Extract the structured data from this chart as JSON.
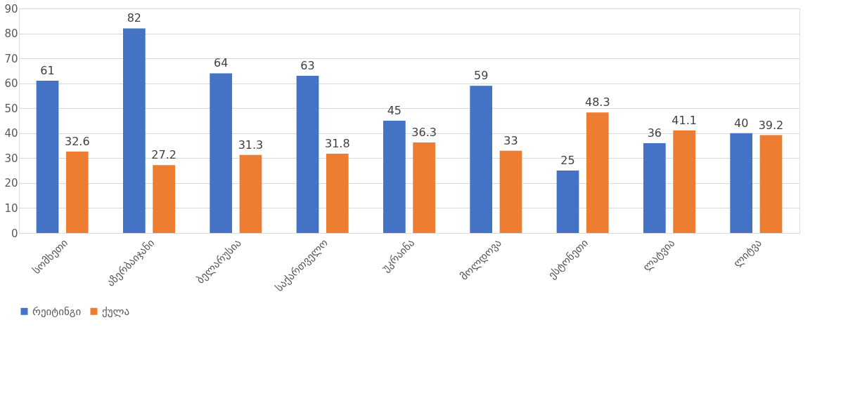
{
  "chart_data": {
    "type": "bar",
    "categories": [
      "სომხეთი",
      "აზერბაიჯანი",
      "ბელარუსია",
      "საქართველო",
      "უკრაინა",
      "მოლდოვა",
      "ესტონეთი",
      "ლატვია",
      "ლიტვა"
    ],
    "series": [
      {
        "name": "რეიტინგი",
        "color": "#4472c4",
        "values": [
          61,
          82,
          64,
          63,
          45,
          59,
          25,
          36,
          40
        ]
      },
      {
        "name": "ქულა",
        "color": "#ed7d31",
        "values": [
          32.6,
          27.2,
          31.3,
          31.8,
          36.3,
          33,
          48.3,
          41.1,
          39.2
        ]
      }
    ],
    "ylim": [
      0,
      90
    ],
    "yticks": [
      0,
      10,
      20,
      30,
      40,
      50,
      60,
      70,
      80,
      90
    ],
    "grid": "y",
    "legend": "bottom",
    "data_labels": true
  }
}
